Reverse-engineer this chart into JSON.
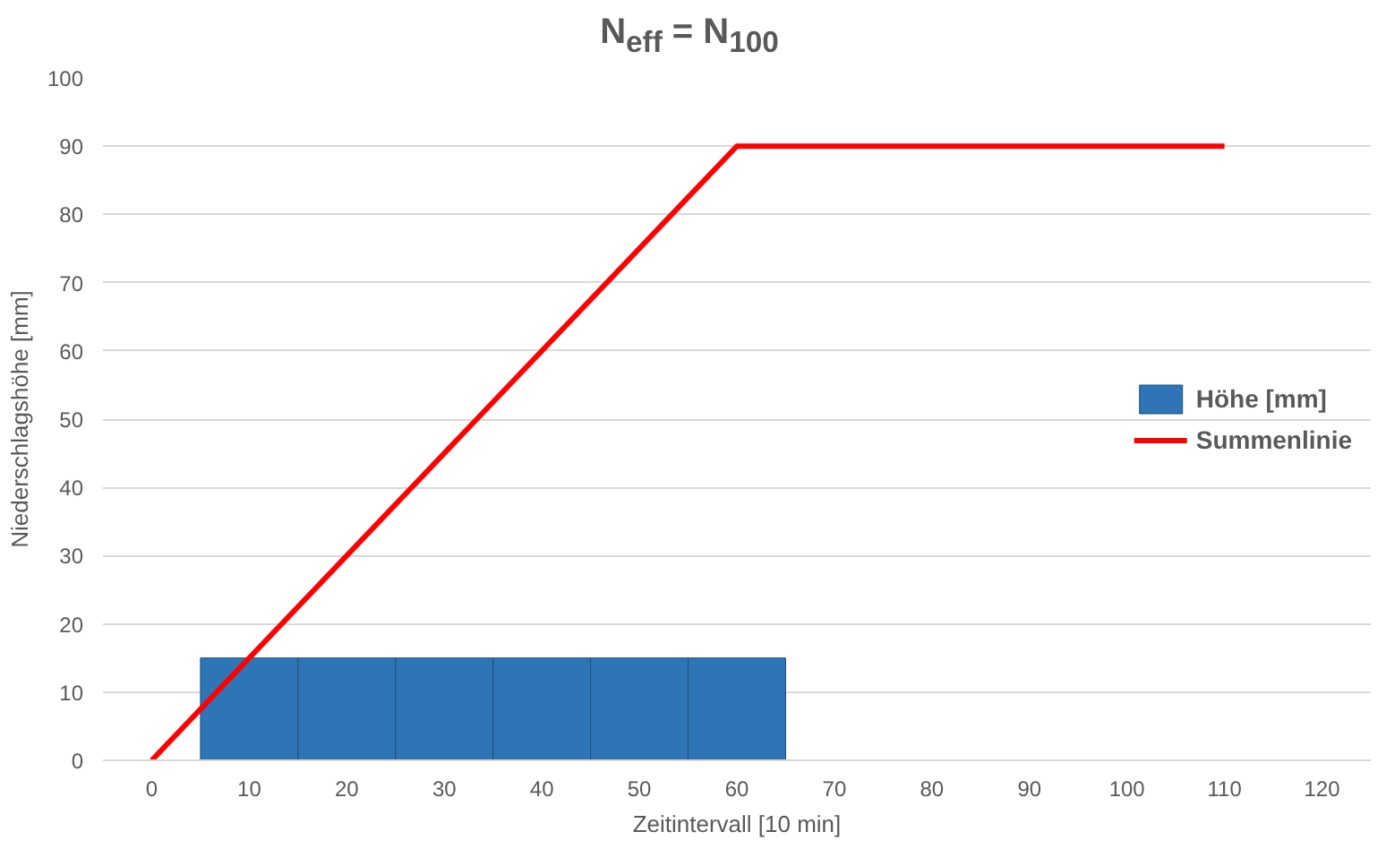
{
  "chart_data": {
    "type": "bar",
    "title": "N$_{eff}$ = N$_{100}$",
    "xlabel": "Zeitintervall [10 min]",
    "ylabel": "Niederschlagshöhe [mm]",
    "x": [
      10,
      20,
      30,
      40,
      50,
      60
    ],
    "series": [
      {
        "name": "Höhe [mm]",
        "color": "#2e75b6",
        "values": [
          15,
          15,
          15,
          15,
          15,
          15
        ]
      },
      {
        "name": "Summenlinie",
        "type": "line",
        "color": "#ff0000",
        "x": [
          0,
          60,
          110
        ],
        "values": [
          0,
          90,
          90
        ]
      }
    ],
    "xlim": [
      -5,
      125
    ],
    "xticks": [
      0,
      10,
      20,
      30,
      40,
      50,
      60,
      70,
      80,
      90,
      100,
      110,
      120
    ],
    "ylim": [
      0,
      100
    ],
    "yticks": [
      0,
      10,
      20,
      30,
      40,
      50,
      60,
      70,
      80,
      90,
      100
    ],
    "grid": "y",
    "legend": "right",
    "marker": "none",
    "line_style": "solid"
  }
}
